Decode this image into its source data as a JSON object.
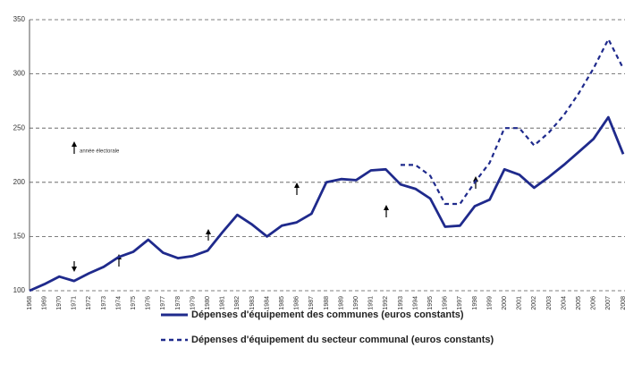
{
  "chart_data": {
    "type": "line",
    "categories": [
      "1968",
      "1969",
      "1970",
      "1971",
      "1972",
      "1973",
      "1974",
      "1975",
      "1976",
      "1977",
      "1978",
      "1979",
      "1980",
      "1981",
      "1982",
      "1983",
      "1984",
      "1985",
      "1986",
      "1987",
      "1988",
      "1989",
      "1990",
      "1991",
      "1992",
      "1993",
      "1994",
      "1995",
      "1996",
      "1997",
      "1998",
      "1999",
      "2000",
      "2001",
      "2002",
      "2003",
      "2004",
      "2005",
      "2006",
      "2007",
      "2008"
    ],
    "series": [
      {
        "name": "Dépenses d'équipement des communes (euros constants)",
        "color": "#1f2a8c",
        "style": "solid",
        "values": [
          100,
          106,
          113,
          109,
          116,
          122,
          131,
          136,
          147,
          135,
          130,
          132,
          137,
          154,
          170,
          161,
          150,
          160,
          163,
          171,
          200,
          203,
          202,
          211,
          212,
          198,
          194,
          185,
          159,
          160,
          178,
          184,
          212,
          207,
          195,
          205,
          216,
          228,
          240,
          260,
          226
        ]
      },
      {
        "name": "Dépenses d'équipement du secteur communal (euros constants)",
        "color": "#1f2a8c",
        "style": "dashed",
        "values": [
          null,
          null,
          null,
          null,
          null,
          null,
          null,
          null,
          null,
          null,
          null,
          null,
          null,
          null,
          null,
          null,
          null,
          null,
          null,
          null,
          null,
          null,
          null,
          null,
          null,
          216,
          216,
          206,
          180,
          180,
          200,
          218,
          250,
          250,
          234,
          246,
          262,
          282,
          305,
          332,
          305
        ]
      }
    ],
    "annotation": "année électorale",
    "ylim": [
      100,
      350
    ],
    "yticks": [
      100,
      150,
      200,
      250,
      300,
      350
    ],
    "grid": true
  }
}
